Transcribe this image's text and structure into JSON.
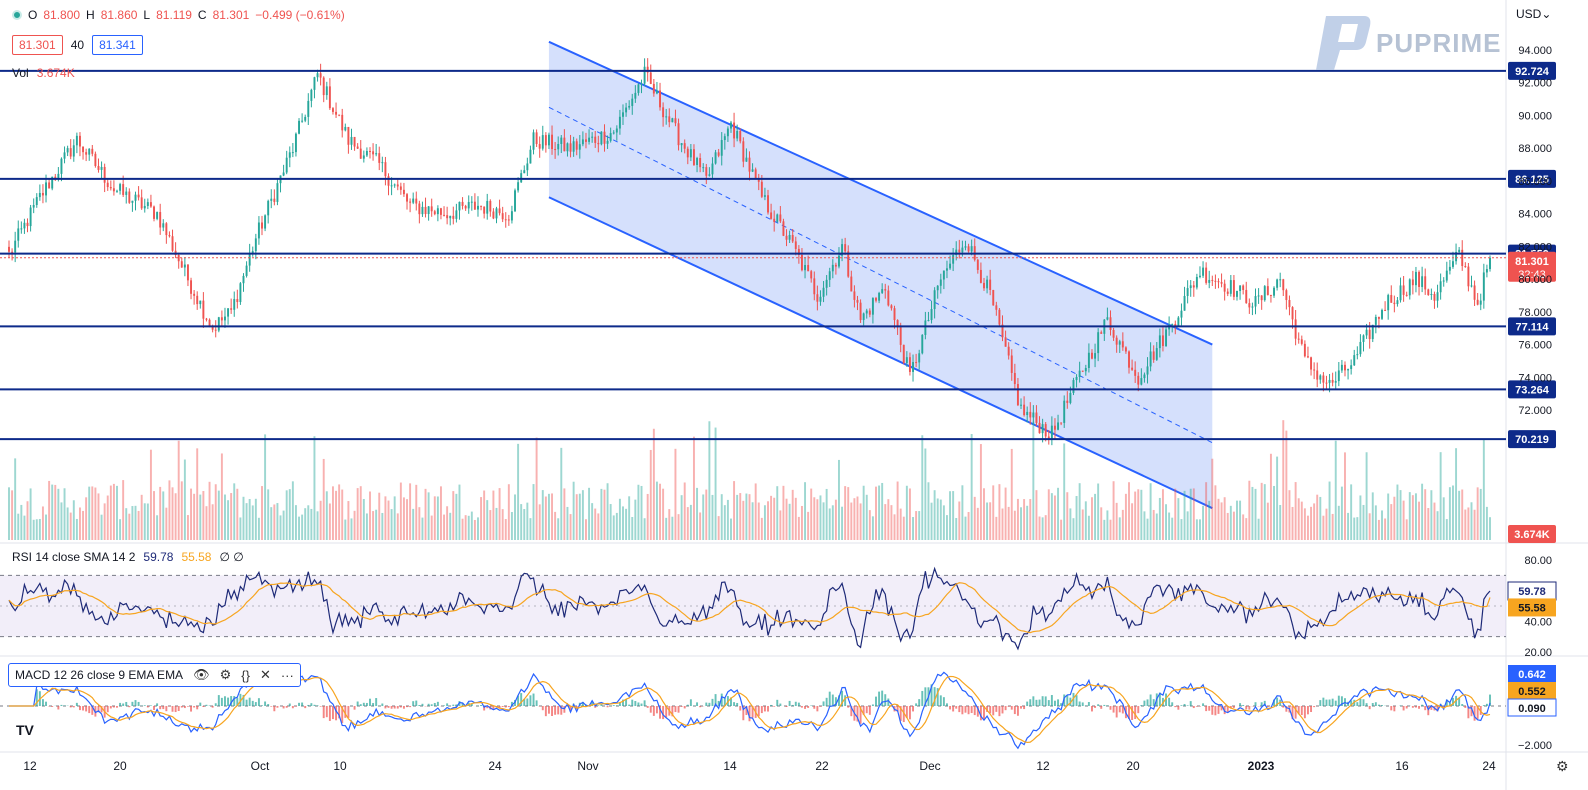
{
  "header": {
    "ohlc": [
      {
        "label": "O",
        "value": "81.800"
      },
      {
        "label": "H",
        "value": "81.860"
      },
      {
        "label": "L",
        "value": "81.119"
      },
      {
        "label": "C",
        "value": "81.301"
      }
    ],
    "change": "−0.499 (−0.61%)",
    "bid": "81.301",
    "spread": "40",
    "ask": "81.341",
    "currency": "USD"
  },
  "volume": {
    "label": "Vol",
    "value": "3.674K"
  },
  "rsi_legend": {
    "label": "RSI 14 close SMA 14 2",
    "rsi": "59.78",
    "sma": "55.58",
    "extra": "∅ ∅"
  },
  "macd_legend": {
    "label": "MACD 12 26 close 9 EMA EMA"
  },
  "brand": {
    "name": "PUPRIME"
  },
  "colors": {
    "up": "#26a69a",
    "down": "#ef5350",
    "level": "#0d2a8a",
    "channel": "#2962ff",
    "rsi": "#1e2a78",
    "rsi_sma": "#f7a520",
    "macd": "#2962ff",
    "signal": "#f7a520"
  },
  "chart_data": {
    "type": "candlestick",
    "price_axis": {
      "ticks": [
        "94.000",
        "92.000",
        "90.000",
        "88.000",
        "86.000",
        "84.000",
        "82.000",
        "80.000",
        "78.000",
        "76.000",
        "74.000",
        "72.000"
      ],
      "ylim": [
        70,
        95
      ]
    },
    "time_axis": {
      "ticks": [
        "12",
        "20",
        "Oct",
        "10",
        "24",
        "Nov",
        "14",
        "22",
        "Dec",
        "12",
        "20",
        "2023",
        "16",
        "24"
      ]
    },
    "horizontal_levels": [
      {
        "price": 92.724,
        "label": "92.724"
      },
      {
        "price": 86.125,
        "label": "86.125"
      },
      {
        "price": 81.559,
        "label": "81.559"
      },
      {
        "price": 77.114,
        "label": "77.114"
      },
      {
        "price": 73.264,
        "label": "73.264"
      },
      {
        "price": 70.219,
        "label": "70.219"
      }
    ],
    "last_price": {
      "price": 81.301,
      "label": "81.301",
      "countdown": "32:43"
    },
    "volume_label": "3.674K",
    "anchors": [
      {
        "t": 0,
        "p": 81.5
      },
      {
        "t": 10,
        "p": 85.0
      },
      {
        "t": 22,
        "p": 88.5
      },
      {
        "t": 34,
        "p": 85.5
      },
      {
        "t": 48,
        "p": 84.0
      },
      {
        "t": 58,
        "p": 80.0
      },
      {
        "t": 66,
        "p": 77.0
      },
      {
        "t": 72,
        "p": 78.0
      },
      {
        "t": 80,
        "p": 82.5
      },
      {
        "t": 92,
        "p": 88.0
      },
      {
        "t": 100,
        "p": 92.5
      },
      {
        "t": 110,
        "p": 88.5
      },
      {
        "t": 120,
        "p": 87.0
      },
      {
        "t": 130,
        "p": 84.5
      },
      {
        "t": 142,
        "p": 84.0
      },
      {
        "t": 152,
        "p": 84.5
      },
      {
        "t": 162,
        "p": 84.0
      },
      {
        "t": 170,
        "p": 88.5
      },
      {
        "t": 182,
        "p": 88.0
      },
      {
        "t": 196,
        "p": 89.0
      },
      {
        "t": 206,
        "p": 92.5
      },
      {
        "t": 216,
        "p": 89.0
      },
      {
        "t": 226,
        "p": 86.0
      },
      {
        "t": 234,
        "p": 89.5
      },
      {
        "t": 244,
        "p": 85.0
      },
      {
        "t": 254,
        "p": 82.0
      },
      {
        "t": 262,
        "p": 79.0
      },
      {
        "t": 270,
        "p": 82.0
      },
      {
        "t": 276,
        "p": 77.5
      },
      {
        "t": 284,
        "p": 79.5
      },
      {
        "t": 292,
        "p": 74.0
      },
      {
        "t": 302,
        "p": 80.0
      },
      {
        "t": 310,
        "p": 82.5
      },
      {
        "t": 318,
        "p": 79.0
      },
      {
        "t": 328,
        "p": 72.0
      },
      {
        "t": 338,
        "p": 70.5
      },
      {
        "t": 348,
        "p": 74.5
      },
      {
        "t": 356,
        "p": 77.5
      },
      {
        "t": 366,
        "p": 74.0
      },
      {
        "t": 376,
        "p": 77.0
      },
      {
        "t": 386,
        "p": 80.5
      },
      {
        "t": 396,
        "p": 79.5
      },
      {
        "t": 404,
        "p": 78.5
      },
      {
        "t": 412,
        "p": 80.0
      },
      {
        "t": 420,
        "p": 75.0
      },
      {
        "t": 428,
        "p": 73.5
      },
      {
        "t": 436,
        "p": 75.0
      },
      {
        "t": 446,
        "p": 78.5
      },
      {
        "t": 456,
        "p": 80.0
      },
      {
        "t": 462,
        "p": 79.0
      },
      {
        "t": 470,
        "p": 81.5
      },
      {
        "t": 476,
        "p": 78.5
      },
      {
        "t": 480,
        "p": 81.3
      }
    ],
    "channel": {
      "upper": [
        {
          "t": 175,
          "p": 94.5
        },
        {
          "t": 390,
          "p": 76.0
        }
      ],
      "mid": [
        {
          "t": 175,
          "p": 90.5
        },
        {
          "t": 390,
          "p": 70.0
        }
      ],
      "lower": [
        {
          "t": 175,
          "p": 85.0
        },
        {
          "t": 390,
          "p": 66.0
        }
      ]
    },
    "rsi": {
      "value": 59.78,
      "sma": 55.58,
      "ticks": [
        "80.00",
        "40.00",
        "20.00"
      ],
      "bands": [
        70,
        30
      ]
    },
    "macd": {
      "macd": "0.642",
      "signal": "0.552",
      "histogram": "0.090",
      "ticks": [
        "−2.000"
      ]
    }
  }
}
